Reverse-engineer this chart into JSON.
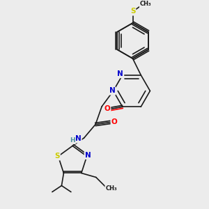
{
  "bg_color": "#ececec",
  "bond_color": "#1a1a1a",
  "atom_colors": {
    "N": "#0000cc",
    "O": "#ff0000",
    "S": "#cccc00",
    "S_thioether": "#cccc00",
    "C": "#1a1a1a",
    "H": "#4a8fa0"
  },
  "font_size_label": 7.5,
  "font_size_small": 6.5
}
